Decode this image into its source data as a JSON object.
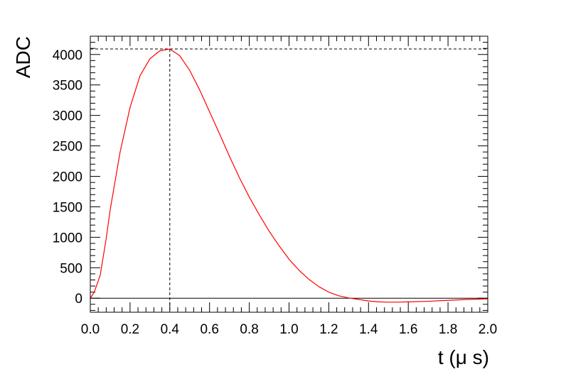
{
  "chart_data": {
    "type": "line",
    "title": "",
    "xlabel": "t (μ s)",
    "ylabel": "ADC",
    "xlim": [
      0.0,
      2.0
    ],
    "ylim": [
      -230,
      4300
    ],
    "xticks": [
      "0.0",
      "0.2",
      "0.4",
      "0.6",
      "0.8",
      "1.0",
      "1.2",
      "1.4",
      "1.6",
      "1.8",
      "2.0"
    ],
    "yticks": [
      "0",
      "500",
      "1000",
      "1500",
      "2000",
      "2500",
      "3000",
      "3500",
      "4000"
    ],
    "grid": false,
    "series": [
      {
        "color": "#ff0000",
        "x": [
          0.0,
          0.02,
          0.05,
          0.08,
          0.1,
          0.15,
          0.2,
          0.25,
          0.3,
          0.35,
          0.4,
          0.45,
          0.5,
          0.55,
          0.6,
          0.65,
          0.7,
          0.75,
          0.8,
          0.85,
          0.9,
          0.95,
          1.0,
          1.05,
          1.1,
          1.15,
          1.2,
          1.25,
          1.3,
          1.35,
          1.4,
          1.45,
          1.5,
          1.55,
          1.6,
          1.7,
          1.8,
          1.9,
          2.0
        ],
        "y": [
          0,
          100,
          380,
          980,
          1450,
          2400,
          3130,
          3650,
          3930,
          4060,
          4090,
          3980,
          3740,
          3420,
          3060,
          2700,
          2330,
          1980,
          1660,
          1370,
          1100,
          860,
          640,
          460,
          310,
          190,
          100,
          40,
          5,
          -20,
          -45,
          -60,
          -65,
          -65,
          -60,
          -50,
          -35,
          -20,
          -10
        ]
      }
    ],
    "reference_lines": [
      {
        "type": "horizontal",
        "y": 4090,
        "style": "dashed"
      },
      {
        "type": "vertical",
        "x": 0.4,
        "style": "dashed"
      },
      {
        "type": "horizontal",
        "y": 0,
        "style": "solid"
      }
    ]
  }
}
